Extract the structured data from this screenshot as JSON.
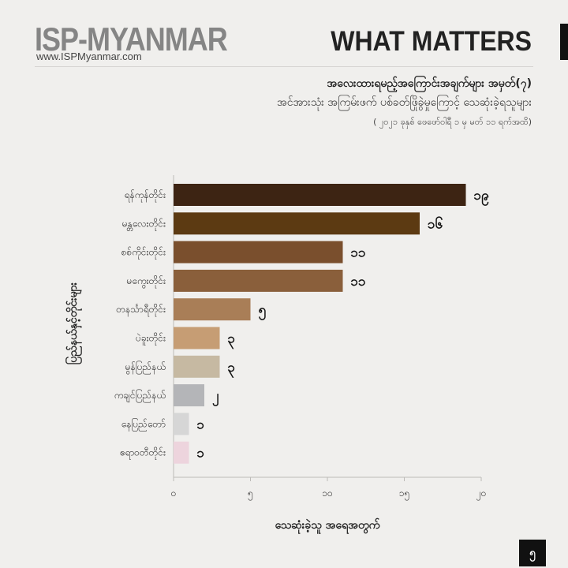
{
  "header": {
    "brand": "ISP-MYANMAR",
    "url": "www.ISPMyanmar.com",
    "section": "WHAT MATTERS"
  },
  "page_number": "၅",
  "chart_data": {
    "type": "bar",
    "orientation": "horizontal",
    "title": "အလေးထားရမည့်အကြောင်းအချက်များ အမှတ်(၇)",
    "subtitle": "အင်အားသုံး အကြမ်းဖက် ပစ်ခတ်ဖြိုခွဲမှုကြောင့် သေဆုံးခဲ့ရသူများ",
    "date_note": "( ၂၀၂၁ ခုနှစ် ဖေဖော်ဝါရီ ၁ မှ မတ် ၁၁ ရက်အထိ)",
    "xlabel": "သေဆုံးခဲ့သူ အရေအတွက်",
    "ylabel": "ပြည်နယ်နှင့်တိုင်းများ",
    "xlim": [
      0,
      20
    ],
    "ticks": [
      0,
      5,
      10,
      15,
      20
    ],
    "tick_labels": [
      "၀",
      "၅",
      "၁၀",
      "၁၅",
      "၂၀"
    ],
    "categories": [
      "ရန်ကုန်တိုင်း",
      "မန္တလေးတိုင်း",
      "စစ်ကိုင်းတိုင်း",
      "မကွေးတိုင်း",
      "တနင်္သာရီတိုင်း",
      "ပဲခူးတိုင်း",
      "မွန်ပြည်နယ်",
      "ကချင်ပြည်နယ်",
      "နေပြည်တော်",
      "ဧရာဝတီတိုင်း"
    ],
    "values": [
      19,
      16,
      11,
      11,
      5,
      3,
      3,
      2,
      1,
      1
    ],
    "value_labels": [
      "၁၉",
      "၁၆",
      "၁၁",
      "၁၁",
      "၅",
      "၃",
      "၃",
      "၂",
      "၁",
      "၁"
    ],
    "colors": [
      "#3d2413",
      "#5c3a12",
      "#7a4f2d",
      "#8a5f3b",
      "#a97e57",
      "#c69d74",
      "#c6b9a2",
      "#b4b5b8",
      "#d6d6d6",
      "#edd4dd"
    ],
    "grid": false
  }
}
